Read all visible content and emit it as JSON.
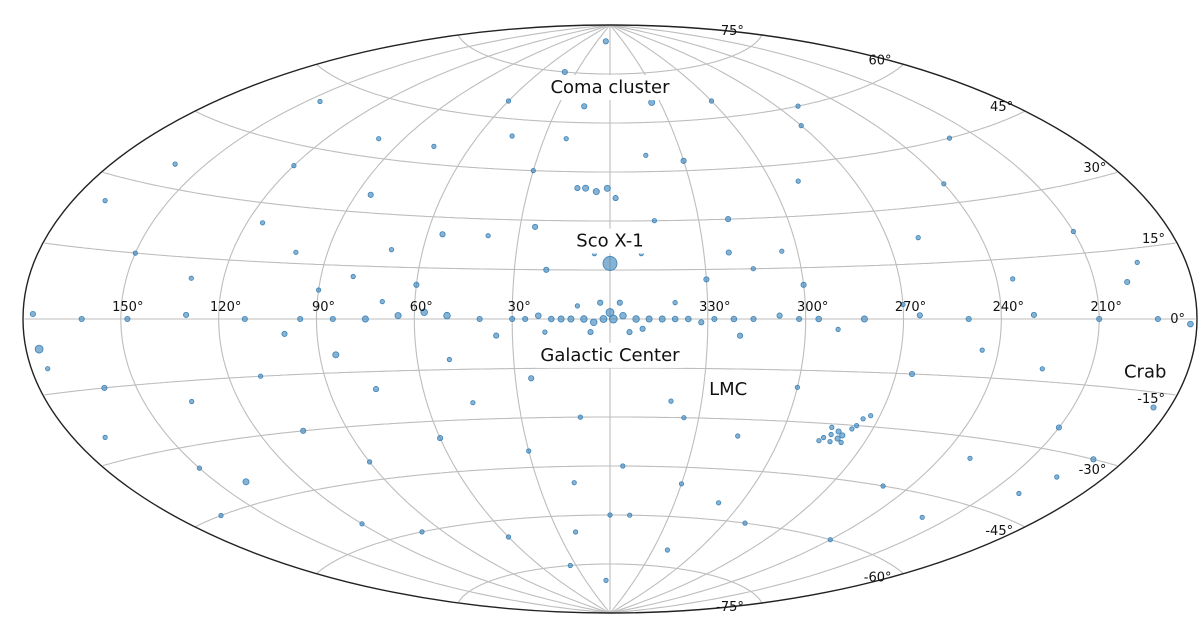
{
  "chart_data": {
    "type": "scatter",
    "projection": "aitoff",
    "coordinates": "galactic",
    "grid": true,
    "marker_color": "#3b82b8",
    "lon_ticks": [
      150,
      120,
      90,
      60,
      30,
      330,
      300,
      270,
      240,
      210
    ],
    "lon_tick_labels": [
      "150°",
      "120°",
      "90°",
      "60°",
      "30°",
      "330°",
      "300°",
      "270°",
      "240°",
      "210°"
    ],
    "lat_ticks": [
      75,
      60,
      45,
      30,
      15,
      0,
      -15,
      -30,
      -45,
      -60,
      -75
    ],
    "lat_tick_labels": [
      "75°",
      "60°",
      "45°",
      "30°",
      "15°",
      "0°",
      "-15°",
      "-30°",
      "-45°",
      "-60°",
      "-75°"
    ],
    "annotations": [
      {
        "text": "Coma cluster",
        "l": 0,
        "b": 71
      },
      {
        "text": "Sco X-1",
        "l": 0,
        "b": 24
      },
      {
        "text": "Galactic Center",
        "l": 0,
        "b": -11
      },
      {
        "text": "LMC",
        "l": 322,
        "b": -21
      },
      {
        "text": "Crab",
        "l": 193,
        "b": -11
      }
    ],
    "sources": [
      {
        "l": 0,
        "b": 17,
        "size": 3.2
      },
      {
        "l": 0,
        "b": 2,
        "size": 1.8
      },
      {
        "l": -1,
        "b": 0,
        "size": 1.8
      },
      {
        "l": 2,
        "b": 0,
        "size": 1.6
      },
      {
        "l": -4,
        "b": 1,
        "size": 1.5
      },
      {
        "l": 5,
        "b": -1,
        "size": 1.5
      },
      {
        "l": 8,
        "b": 0,
        "size": 1.5
      },
      {
        "l": -8,
        "b": 0,
        "size": 1.5
      },
      {
        "l": 12,
        "b": 0,
        "size": 1.4
      },
      {
        "l": -12,
        "b": 0,
        "size": 1.4
      },
      {
        "l": 15,
        "b": 0,
        "size": 1.4
      },
      {
        "l": 18,
        "b": 0,
        "size": 1.3
      },
      {
        "l": 22,
        "b": 1,
        "size": 1.3
      },
      {
        "l": 26,
        "b": 0,
        "size": 1.2
      },
      {
        "l": 30,
        "b": 0,
        "size": 1.2
      },
      {
        "l": 40,
        "b": 0,
        "size": 1.2
      },
      {
        "l": 50,
        "b": 1,
        "size": 1.5
      },
      {
        "l": 57,
        "b": 2,
        "size": 1.5
      },
      {
        "l": 65,
        "b": 1,
        "size": 1.4
      },
      {
        "l": 75,
        "b": 0,
        "size": 1.4
      },
      {
        "l": 85,
        "b": 0,
        "size": 1.2
      },
      {
        "l": 95,
        "b": 0,
        "size": 1.2
      },
      {
        "l": 112,
        "b": 0,
        "size": 1.2
      },
      {
        "l": 130,
        "b": 1,
        "size": 1.2
      },
      {
        "l": 148,
        "b": 0,
        "size": 1.2
      },
      {
        "l": 162,
        "b": 0,
        "size": 1.2
      },
      {
        "l": 177,
        "b": 1,
        "size": 1.2
      },
      {
        "l": -16,
        "b": 0,
        "size": 1.4
      },
      {
        "l": -20,
        "b": 0,
        "size": 1.3
      },
      {
        "l": -24,
        "b": 0,
        "size": 1.3
      },
      {
        "l": -28,
        "b": -1,
        "size": 1.2
      },
      {
        "l": -32,
        "b": 0,
        "size": 1.2
      },
      {
        "l": -38,
        "b": 0,
        "size": 1.3
      },
      {
        "l": -44,
        "b": 0,
        "size": 1.2
      },
      {
        "l": -52,
        "b": 1,
        "size": 1.2
      },
      {
        "l": -58,
        "b": 0,
        "size": 1.2
      },
      {
        "l": -64,
        "b": 0,
        "size": 1.3
      },
      {
        "l": -78,
        "b": 0,
        "size": 1.4
      },
      {
        "l": -95,
        "b": 1,
        "size": 1.2
      },
      {
        "l": -110,
        "b": 0,
        "size": 1.2
      },
      {
        "l": -130,
        "b": 1,
        "size": 1.2
      },
      {
        "l": -150,
        "b": 0,
        "size": 1.2
      },
      {
        "l": -168,
        "b": 0,
        "size": 1.2
      },
      {
        "l": -178,
        "b": -1,
        "size": 1.3
      },
      {
        "l": 3,
        "b": 5,
        "size": 1.2
      },
      {
        "l": -3,
        "b": 5,
        "size": 1.2
      },
      {
        "l": 6,
        "b": -4,
        "size": 1.2
      },
      {
        "l": -6,
        "b": -4,
        "size": 1.2
      },
      {
        "l": 10,
        "b": 4,
        "size": 1.0
      },
      {
        "l": -10,
        "b": -3,
        "size": 1.2
      },
      {
        "l": 20,
        "b": -4,
        "size": 1.0
      },
      {
        "l": 35,
        "b": -5,
        "size": 1.2
      },
      {
        "l": 70,
        "b": 5,
        "size": 1.0
      },
      {
        "l": 100,
        "b": -4,
        "size": 1.2
      },
      {
        "l": -20,
        "b": 5,
        "size": 1.0
      },
      {
        "l": -40,
        "b": -5,
        "size": 1.2
      },
      {
        "l": -70,
        "b": -3,
        "size": 1.0
      },
      {
        "l": -90,
        "b": 4,
        "size": 1.0
      },
      {
        "l": 1,
        "b": 40,
        "size": 1.4
      },
      {
        "l": 5,
        "b": 39,
        "size": 1.4
      },
      {
        "l": 9,
        "b": 40,
        "size": 1.4
      },
      {
        "l": 12,
        "b": 40,
        "size": 1.2
      },
      {
        "l": -2,
        "b": 37,
        "size": 1.2
      },
      {
        "l": 15,
        "b": 65,
        "size": 1.2
      },
      {
        "l": -25,
        "b": 66,
        "size": 1.4
      },
      {
        "l": 40,
        "b": 75,
        "size": 1.2
      },
      {
        "l": 10,
        "b": 85,
        "size": 1.2
      },
      {
        "l": -8,
        "b": 72,
        "size": 1.0
      },
      {
        "l": -30,
        "b": 48,
        "size": 1.2
      },
      {
        "l": -40,
        "b": 30,
        "size": 1.2
      },
      {
        "l": -55,
        "b": 20,
        "size": 1.0
      },
      {
        "l": -70,
        "b": 40,
        "size": 1.0
      },
      {
        "l": -90,
        "b": 55,
        "size": 1.0
      },
      {
        "l": -120,
        "b": 35,
        "size": 1.0
      },
      {
        "l": -150,
        "b": 20,
        "size": 1.0
      },
      {
        "l": -160,
        "b": 8,
        "size": 1.2
      },
      {
        "l": -60,
        "b": 10,
        "size": 1.2
      },
      {
        "l": -45,
        "b": 15,
        "size": 1.0
      },
      {
        "l": -38,
        "b": 20,
        "size": 1.2
      },
      {
        "l": -30,
        "b": 12,
        "size": 1.2
      },
      {
        "l": 25,
        "b": 28,
        "size": 1.2
      },
      {
        "l": 40,
        "b": 25,
        "size": 1.0
      },
      {
        "l": 55,
        "b": 25,
        "size": 1.2
      },
      {
        "l": 70,
        "b": 20,
        "size": 1.0
      },
      {
        "l": 85,
        "b": 35,
        "size": 1.2
      },
      {
        "l": 100,
        "b": 18,
        "size": 1.0
      },
      {
        "l": 115,
        "b": 25,
        "size": 1.0
      },
      {
        "l": 120,
        "b": 40,
        "size": 1.0
      },
      {
        "l": 150,
        "b": 15,
        "size": 1.0
      },
      {
        "l": 160,
        "b": 35,
        "size": 1.0
      },
      {
        "l": 170,
        "b": 25,
        "size": 1.0
      },
      {
        "l": 75,
        "b": 50,
        "size": 1.0
      },
      {
        "l": 45,
        "b": 55,
        "size": 1.0
      },
      {
        "l": 30,
        "b": 45,
        "size": 1.0
      },
      {
        "l": 20,
        "b": 15,
        "size": 1.2
      },
      {
        "l": 10,
        "b": 25,
        "size": 1.0
      },
      {
        "l": -10,
        "b": 20,
        "size": 1.0
      },
      {
        "l": -15,
        "b": 30,
        "size": 1.0
      },
      {
        "l": 60,
        "b": 10,
        "size": 1.2
      },
      {
        "l": 80,
        "b": 12,
        "size": 1.0
      },
      {
        "l": 90,
        "b": 8,
        "size": 1.0
      },
      {
        "l": 130,
        "b": 10,
        "size": 1.0
      },
      {
        "l": -81,
        "b": -33,
        "size": 1.2
      },
      {
        "l": -79,
        "b": -32,
        "size": 1.2
      },
      {
        "l": -80,
        "b": -34,
        "size": 1.2
      },
      {
        "l": -77,
        "b": -33,
        "size": 1.0
      },
      {
        "l": -83,
        "b": -31,
        "size": 1.0
      },
      {
        "l": -78,
        "b": -35,
        "size": 1.0
      },
      {
        "l": -76,
        "b": -31,
        "size": 1.0
      },
      {
        "l": -82,
        "b": -35,
        "size": 1.0
      },
      {
        "l": -75,
        "b": -34,
        "size": 1.0
      },
      {
        "l": -84,
        "b": -30,
        "size": 1.0
      },
      {
        "l": -85,
        "b": -28,
        "size": 1.0
      },
      {
        "l": -87,
        "b": -27,
        "size": 1.0
      },
      {
        "l": -74,
        "b": -35,
        "size": 1.0
      },
      {
        "l": -184,
        "b": -6,
        "size": 1.8
      },
      {
        "l": -175,
        "b": -18,
        "size": 1.2
      },
      {
        "l": -170,
        "b": -30,
        "size": 1.2
      },
      {
        "l": -160,
        "b": -40,
        "size": 1.0
      },
      {
        "l": -150,
        "b": -25,
        "size": 1.2
      },
      {
        "l": -130,
        "b": -35,
        "size": 1.0
      },
      {
        "l": -110,
        "b": -45,
        "size": 1.0
      },
      {
        "l": -95,
        "b": -15,
        "size": 1.2
      },
      {
        "l": -60,
        "b": -20,
        "size": 1.0
      },
      {
        "l": -45,
        "b": -35,
        "size": 1.0
      },
      {
        "l": -30,
        "b": -50,
        "size": 1.0
      },
      {
        "l": -20,
        "b": -25,
        "size": 1.0
      },
      {
        "l": -10,
        "b": -60,
        "size": 1.0
      },
      {
        "l": -40,
        "b": -70,
        "size": 1.0
      },
      {
        "l": 5,
        "b": -80,
        "size": 1.0
      },
      {
        "l": 20,
        "b": -65,
        "size": 1.0
      },
      {
        "l": 30,
        "b": -40,
        "size": 1.0
      },
      {
        "l": 45,
        "b": -25,
        "size": 1.0
      },
      {
        "l": 60,
        "b": -35,
        "size": 1.2
      },
      {
        "l": 75,
        "b": -20,
        "size": 1.2
      },
      {
        "l": 90,
        "b": -40,
        "size": 1.0
      },
      {
        "l": 105,
        "b": -30,
        "size": 1.2
      },
      {
        "l": 120,
        "b": -55,
        "size": 1.0
      },
      {
        "l": 135,
        "b": -20,
        "size": 1.0
      },
      {
        "l": 150,
        "b": -35,
        "size": 1.0
      },
      {
        "l": 160,
        "b": -15,
        "size": 1.2
      },
      {
        "l": 170,
        "b": -25,
        "size": 1.0
      },
      {
        "l": 175,
        "b": -10,
        "size": 1.0
      },
      {
        "l": 165,
        "b": -45,
        "size": 1.0
      },
      {
        "l": 140,
        "b": -40,
        "size": 1.4
      },
      {
        "l": 110,
        "b": -15,
        "size": 1.0
      },
      {
        "l": 85,
        "b": -10,
        "size": 1.4
      },
      {
        "l": 50,
        "b": -12,
        "size": 1.0
      },
      {
        "l": 25,
        "b": -18,
        "size": 1.2
      },
      {
        "l": 10,
        "b": -30,
        "size": 1.0
      },
      {
        "l": -5,
        "b": -45,
        "size": 1.0
      },
      {
        "l": 0,
        "b": -60,
        "size": 1.0
      },
      {
        "l": 15,
        "b": -50,
        "size": 1.0
      },
      {
        "l": -25,
        "b": -30,
        "size": 1.0
      },
      {
        "l": -50,
        "b": -55,
        "size": 1.0
      },
      {
        "l": -70,
        "b": -60,
        "size": 1.0
      },
      {
        "l": -120,
        "b": -60,
        "size": 1.0
      },
      {
        "l": -140,
        "b": -50,
        "size": 1.0
      },
      {
        "l": -165,
        "b": -35,
        "size": 1.0
      },
      {
        "l": 100,
        "b": -60,
        "size": 1.0
      },
      {
        "l": 60,
        "b": -65,
        "size": 1.0
      },
      {
        "l": 35,
        "b": -75,
        "size": 1.0
      },
      {
        "l": -100,
        "b": 22,
        "size": 1.0
      },
      {
        "l": -125,
        "b": 10,
        "size": 1.0
      },
      {
        "l": -140,
        "b": 45,
        "size": 1.0
      },
      {
        "l": -165,
        "b": 12,
        "size": 1.0
      },
      {
        "l": -115,
        "b": -8,
        "size": 1.0
      },
      {
        "l": -135,
        "b": -12,
        "size": 1.0
      },
      {
        "l": 145,
        "b": 55,
        "size": 1.0
      },
      {
        "l": 100,
        "b": 50,
        "size": 1.0
      },
      {
        "l": 60,
        "b": 65,
        "size": 1.0
      },
      {
        "l": -60,
        "b": 65,
        "size": 1.0
      },
      {
        "l": -100,
        "b": 60,
        "size": 1.0
      },
      {
        "l": -15,
        "b": 50,
        "size": 1.0
      },
      {
        "l": 20,
        "b": 55,
        "size": 1.0
      },
      {
        "l": 5,
        "b": 20,
        "size": 1.0
      }
    ]
  }
}
